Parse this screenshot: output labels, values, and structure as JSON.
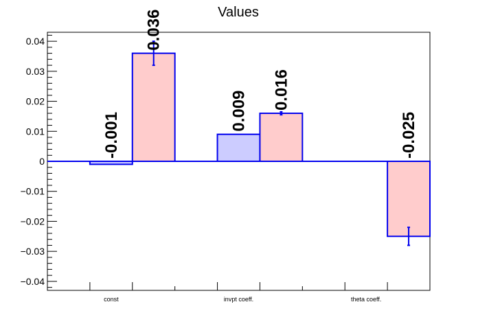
{
  "chart_data": {
    "type": "bar",
    "title": "Values",
    "xlabel": "",
    "ylabel": "",
    "ylim": [
      -0.043,
      0.043
    ],
    "yticks": [
      0.04,
      0.03,
      0.02,
      0.01,
      0,
      -0.01,
      -0.02,
      -0.03,
      -0.04
    ],
    "ytick_labels": [
      "0.04",
      "0.03",
      "0.02",
      "0.01",
      "0",
      "−0.01",
      "−0.02",
      "−0.03",
      "−0.04"
    ],
    "categories": [
      "const",
      "invpt coeff.",
      "theta coeff."
    ],
    "series": [
      {
        "fill": "#ccccff",
        "stroke": "#0000ee",
        "values": [
          -0.001,
          0.009,
          null
        ],
        "errors": [
          0.0,
          0.0,
          null
        ],
        "labels": [
          "-0.001",
          "0.009",
          ""
        ]
      },
      {
        "fill": "#ffcccc",
        "stroke": "#0000ee",
        "values": [
          0.036,
          0.016,
          -0.025
        ],
        "errors": [
          0.004,
          0.0005,
          0.003
        ],
        "labels": [
          "0.036",
          "0.016",
          "-0.025"
        ]
      }
    ],
    "grid": false,
    "legend": "none"
  }
}
